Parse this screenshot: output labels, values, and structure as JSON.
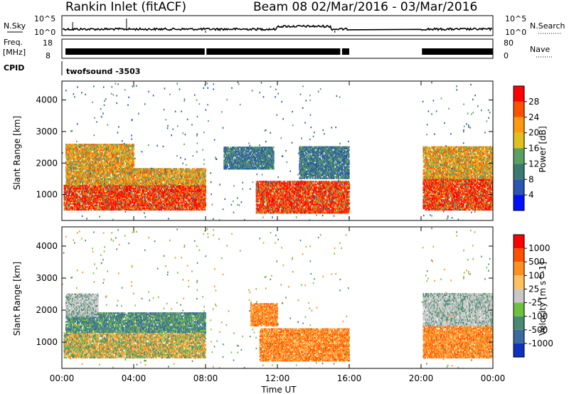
{
  "header": {
    "station": "Rankin Inlet (fitACF)",
    "beam_dates": "Beam 08  02/Mar/2016 - 03/Mar/2016"
  },
  "panels": {
    "nsky": {
      "label": "N.Sky",
      "ticks": [
        "10^5",
        "10^0"
      ]
    },
    "nsearch": {
      "label": "N.Search",
      "ticks": [
        "10^5",
        "10^0"
      ]
    },
    "freq": {
      "label_line1": "Freq.",
      "label_line2": "[MHz]",
      "ticks": [
        "18",
        "8"
      ]
    },
    "nave": {
      "label": "Nave",
      "ticks": [
        "80",
        "0"
      ]
    },
    "cpid": {
      "label": "CPID",
      "value": "twofsound -3503"
    }
  },
  "chart_data": [
    {
      "type": "heatmap",
      "quantity": "Power",
      "ylabel": "Slant Range [km]",
      "colorbar_label": "Power [dB]",
      "colorbar_ticks": [
        "28",
        "24",
        "20",
        "16",
        "12",
        "8",
        "4"
      ],
      "ylim": [
        180,
        4600
      ],
      "yticks": [
        "4000",
        "3000",
        "2000",
        "1000"
      ],
      "xlim_hours": [
        0,
        24
      ],
      "xticks": [
        "00:00",
        "04:00",
        "08:00",
        "12:00",
        "16:00",
        "20:00",
        "00:00"
      ],
      "xlabel": "Time UT",
      "data_gap_hours": [
        16.0,
        20.0
      ],
      "colors": [
        "#0010ff",
        "#2a55b0",
        "#3a7a70",
        "#5aa060",
        "#e0c020",
        "#ff9a10",
        "#ff5000",
        "#ff0000"
      ],
      "echo_regions": [
        {
          "t": [
            0.1,
            8.0
          ],
          "r": [
            500,
            1300
          ],
          "level": "high"
        },
        {
          "t": [
            0.2,
            8.0
          ],
          "r": [
            1300,
            1800
          ],
          "level": "mid"
        },
        {
          "t": [
            0.2,
            4.0
          ],
          "r": [
            1800,
            2600
          ],
          "level": "mid"
        },
        {
          "t": [
            9.0,
            11.8
          ],
          "r": [
            1800,
            2500
          ],
          "level": "low"
        },
        {
          "t": [
            10.8,
            16.0
          ],
          "r": [
            400,
            1400
          ],
          "level": "high"
        },
        {
          "t": [
            13.2,
            16.0
          ],
          "r": [
            1500,
            2500
          ],
          "level": "low"
        },
        {
          "t": [
            20.1,
            24.0
          ],
          "r": [
            500,
            1500
          ],
          "level": "high"
        },
        {
          "t": [
            20.1,
            24.0
          ],
          "r": [
            1500,
            2500
          ],
          "level": "mid"
        }
      ]
    },
    {
      "type": "heatmap",
      "quantity": "Velocity",
      "ylabel": "Slant Range [km]",
      "colorbar_label": "Velocity [m s^-1]",
      "colorbar_ticks": [
        "1000",
        "500",
        "100",
        "25",
        "-25",
        "-100",
        "-500",
        "-1000"
      ],
      "ylim": [
        180,
        4600
      ],
      "yticks": [
        "4000",
        "3000",
        "2000",
        "1000"
      ],
      "xlim_hours": [
        0,
        24
      ],
      "xticks": [
        "00:00",
        "04:00",
        "08:00",
        "12:00",
        "16:00",
        "20:00",
        "00:00"
      ],
      "xlabel": "Time UT",
      "data_gap_hours": [
        16.0,
        20.0
      ],
      "colors": [
        "#1030c0",
        "#3a6aa0",
        "#4a8a70",
        "#70c040",
        "#c8c8c8",
        "#ffc060",
        "#ff9020",
        "#ff5000",
        "#ff0000"
      ],
      "echo_regions": [
        {
          "t": [
            0.1,
            8.0
          ],
          "r": [
            500,
            1300
          ],
          "level": "mixed"
        },
        {
          "t": [
            0.2,
            8.0
          ],
          "r": [
            1300,
            1900
          ],
          "level": "toward"
        },
        {
          "t": [
            0.2,
            2.0
          ],
          "r": [
            1800,
            2500
          ],
          "level": "slow"
        },
        {
          "t": [
            10.5,
            12.0
          ],
          "r": [
            1500,
            2200
          ],
          "level": "away"
        },
        {
          "t": [
            11.0,
            16.0
          ],
          "r": [
            400,
            1400
          ],
          "level": "away"
        },
        {
          "t": [
            20.1,
            24.0
          ],
          "r": [
            500,
            1500
          ],
          "level": "away"
        },
        {
          "t": [
            20.1,
            24.0
          ],
          "r": [
            1500,
            2500
          ],
          "level": "slow"
        }
      ]
    }
  ]
}
